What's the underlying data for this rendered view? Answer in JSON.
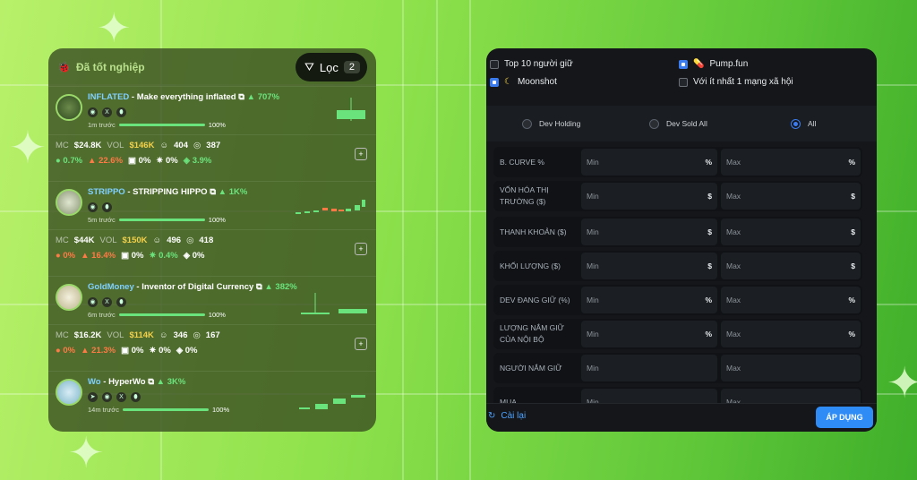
{
  "left": {
    "title": "Đã tốt nghiệp",
    "filter_label": "Lọc",
    "filter_count": "2",
    "tokens": [
      {
        "sym": "INFLATED",
        "name": "Make everything inflated",
        "change": "707%",
        "age": "1m trước",
        "progress": "100%",
        "mc": "$24.8K",
        "vol": "$146K",
        "holders": "404",
        "tx": "387",
        "s1": "0.7%",
        "s2": "22.6%",
        "s3": "0%",
        "s4": "0%",
        "s5": "3.9%"
      },
      {
        "sym": "STRIPPO",
        "name": "STRIPPING HIPPO",
        "change": "1K%",
        "age": "5m trước",
        "progress": "100%",
        "mc": "$44K",
        "vol": "$150K",
        "holders": "496",
        "tx": "418",
        "s1": "0%",
        "s2": "16.4%",
        "s3": "0%",
        "s4": "0.4%",
        "s5": "0%"
      },
      {
        "sym": "GoldMoney",
        "name": "Inventor of Digital Currency",
        "change": "382%",
        "age": "6m trước",
        "progress": "100%",
        "mc": "$16.2K",
        "vol": "$114K",
        "holders": "346",
        "tx": "167",
        "s1": "0%",
        "s2": "21.3%",
        "s3": "0%",
        "s4": "0%",
        "s5": "0%"
      },
      {
        "sym": "Wo",
        "name": "HyperWo",
        "change": "3K%",
        "age": "14m trước",
        "progress": "100%"
      }
    ],
    "mc_label": "MC",
    "vol_label": "VOL"
  },
  "right": {
    "checks": {
      "top10": "Top 10 người giữ",
      "pumpfun": "Pump.fun",
      "moonshot": "Moonshot",
      "social": "Với ít nhất 1 mạng xã hội"
    },
    "dev": {
      "holding": "Dev Holding",
      "sold": "Dev Sold All",
      "all": "All"
    },
    "rows": [
      {
        "label": "B. CURVE %",
        "unit": "%"
      },
      {
        "label": "VỐN HÓA THỊ TRƯỜNG ($)",
        "unit": "$"
      },
      {
        "label": "THANH KHOẢN ($)",
        "unit": "$"
      },
      {
        "label": "KHỐI LƯỢNG ($)",
        "unit": "$"
      },
      {
        "label": "DEV ĐANG GIỮ (%)",
        "unit": "%"
      },
      {
        "label": "LƯỢNG NẮM GIỮ CỦA NỘI BỘ",
        "unit": "%"
      },
      {
        "label": "NGƯỜI NẮM GIỮ",
        "unit": ""
      },
      {
        "label": "MUA",
        "unit": ""
      }
    ],
    "min": "Min",
    "max": "Max",
    "reset": "Cài lại",
    "apply": "ÁP DỤNG"
  }
}
